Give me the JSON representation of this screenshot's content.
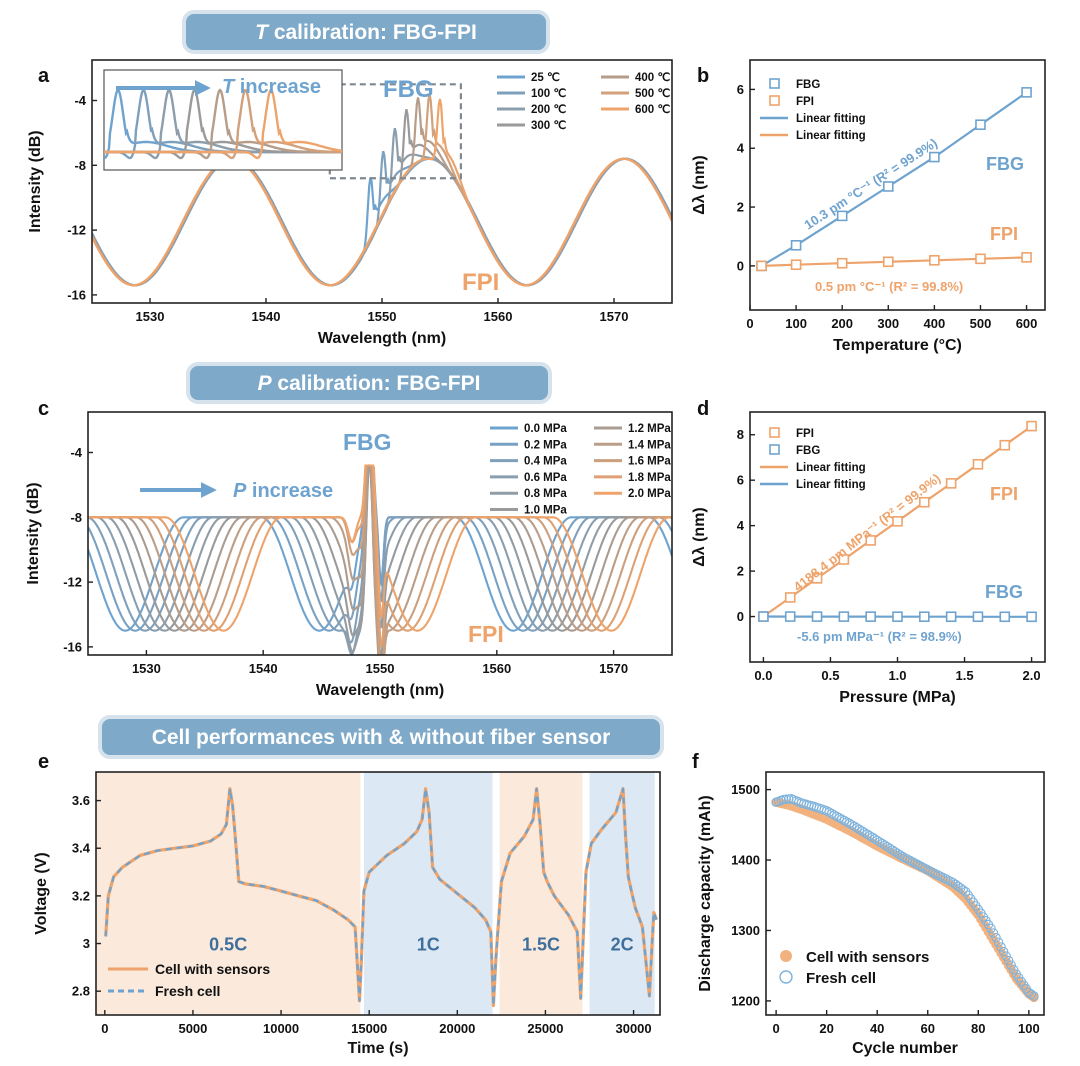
{
  "colors": {
    "blue": "#6fa3cf",
    "orange": "#eea36b",
    "banner": "#7ea9c9",
    "blueShade": "#dce9f4",
    "orangeShade": "#fbe9dc"
  },
  "banners": {
    "a": {
      "italic": "T",
      "rest": " calibration: FBG-FPI"
    },
    "c": {
      "italic": "P",
      "rest": " calibration: FBG-FPI"
    },
    "e": {
      "italic": "",
      "rest": "Cell performances with & without fiber sensor"
    }
  },
  "chart_data": [
    {
      "id": "a",
      "panel_label": "a",
      "type": "line",
      "xlabel": "Wavelength (nm)",
      "ylabel": "Intensity (dB)",
      "xlim": [
        1525,
        1575
      ],
      "ylim": [
        -16.5,
        -1.5
      ],
      "xticks": [
        1530,
        1540,
        1550,
        1560,
        1570
      ],
      "yticks": [
        -16,
        -12,
        -8,
        -4
      ],
      "legend": [
        "25 ℃",
        "100 ℃",
        "200 ℃",
        "300 ℃",
        "400 ℃",
        "500 ℃",
        "600 ℃"
      ],
      "series_params": {
        "fbg_center": [
          1549.0,
          1550.1,
          1551.1,
          1552.1,
          1553.1,
          1554.1,
          1555.0
        ],
        "fpi_period": 16.9,
        "fpi_min": [
          1528.7,
          1545.6,
          1562.5
        ]
      },
      "annotations": {
        "fbg": "FBG",
        "fpi": "FPI",
        "inset_italic": "T",
        "inset_rest": " increase"
      }
    },
    {
      "id": "b",
      "panel_label": "b",
      "type": "scatter",
      "xlabel": "Temperature (°C)",
      "ylabel": "Δλ (nm)",
      "xlim": [
        0,
        640
      ],
      "ylim": [
        -1.5,
        7
      ],
      "xticks": [
        0,
        100,
        200,
        300,
        400,
        500,
        600
      ],
      "yticks": [
        0,
        2,
        4,
        6
      ],
      "series": [
        {
          "name": "FBG",
          "fit_name": "Linear fitting",
          "x": [
            25,
            100,
            200,
            300,
            400,
            500,
            600
          ],
          "values": [
            0,
            0.7,
            1.7,
            2.7,
            3.7,
            4.8,
            5.9
          ]
        },
        {
          "name": "FPI",
          "fit_name": "Linear fitting",
          "x": [
            25,
            100,
            200,
            300,
            400,
            500,
            600
          ],
          "values": [
            0,
            0.04,
            0.09,
            0.14,
            0.19,
            0.24,
            0.29
          ]
        }
      ],
      "annotations": {
        "fbg_label": "FBG",
        "fpi_label": "FPI",
        "fbg_fit": "10.3 pm °C⁻¹ (R² = 99.9%)",
        "fpi_fit": "0.5 pm °C⁻¹ (R² = 99.8%)"
      }
    },
    {
      "id": "c",
      "panel_label": "c",
      "type": "line",
      "xlabel": "Wavelength (nm)",
      "ylabel": "Intensity (dB)",
      "xlim": [
        1525,
        1575
      ],
      "ylim": [
        -16.5,
        -1.5
      ],
      "xticks": [
        1530,
        1540,
        1550,
        1560,
        1570
      ],
      "yticks": [
        -16,
        -12,
        -8,
        -4
      ],
      "legend": [
        "0.0 MPa",
        "0.2 MPa",
        "0.4 MPa",
        "0.6 MPa",
        "0.8 MPa",
        "1.0 MPa",
        "1.2 MPa",
        "1.4 MPa",
        "1.6 MPa",
        "1.8 MPa",
        "2.0 MPa"
      ],
      "series_params": {
        "fpi_min_start": 1528.2,
        "fpi_shift_per_step": 0.84,
        "fpi_period": 16.6,
        "fbg_center": 1549.1
      },
      "annotations": {
        "fbg": "FBG",
        "fpi": "FPI",
        "arrow_italic": "P",
        "arrow_rest": " increase"
      }
    },
    {
      "id": "d",
      "panel_label": "d",
      "type": "scatter",
      "xlabel": "Pressure (MPa)",
      "ylabel": "Δλ (nm)",
      "xlim": [
        -0.1,
        2.1
      ],
      "ylim": [
        -2,
        9
      ],
      "xticks": [
        0.0,
        0.5,
        1.0,
        1.5,
        2.0
      ],
      "yticks": [
        0,
        2,
        4,
        6,
        8
      ],
      "series": [
        {
          "name": "FPI",
          "fit_name": "Linear fitting",
          "x": [
            0,
            0.2,
            0.4,
            0.6,
            0.8,
            1.0,
            1.2,
            1.4,
            1.6,
            1.8,
            2.0
          ],
          "values": [
            0,
            0.84,
            1.68,
            2.51,
            3.35,
            4.19,
            5.03,
            5.86,
            6.7,
            7.54,
            8.38
          ]
        },
        {
          "name": "FBG",
          "fit_name": "Linear fitting",
          "x": [
            0,
            0.2,
            0.4,
            0.6,
            0.8,
            1.0,
            1.2,
            1.4,
            1.6,
            1.8,
            2.0
          ],
          "values": [
            0,
            -0.001,
            -0.002,
            -0.003,
            -0.004,
            -0.006,
            -0.007,
            -0.008,
            -0.009,
            -0.01,
            -0.011
          ]
        }
      ],
      "annotations": {
        "fpi_label": "FPI",
        "fbg_label": "FBG",
        "fpi_fit": "4188.4 pm MPa⁻¹ (R² = 99.9%)",
        "fbg_fit": "-5.6 pm MPa⁻¹ (R² = 98.9%)"
      }
    },
    {
      "id": "e",
      "panel_label": "e",
      "type": "line",
      "xlabel": "Time (s)",
      "ylabel": "Voltage (V)",
      "xlim": [
        -500,
        31500
      ],
      "ylim": [
        2.7,
        3.72
      ],
      "xticks": [
        0,
        5000,
        10000,
        15000,
        20000,
        25000,
        30000
      ],
      "yticks": [
        2.8,
        3.0,
        3.2,
        3.4,
        3.6
      ],
      "regions": [
        {
          "label": "0.5C",
          "from": -500,
          "to": 14500,
          "shade": "orange"
        },
        {
          "label": "1C",
          "from": 14700,
          "to": 22000,
          "shade": "blue"
        },
        {
          "label": "1.5C",
          "from": 22400,
          "to": 27100,
          "shade": "orange"
        },
        {
          "label": "2C",
          "from": 27500,
          "to": 31200,
          "shade": "blue"
        }
      ],
      "series": [
        {
          "name": "Cell with sensors",
          "style": "solid"
        },
        {
          "name": "Fresh cell",
          "style": "dashed"
        }
      ],
      "curve": {
        "t": [
          50,
          200,
          500,
          1000,
          2000,
          3000,
          4000,
          5000,
          6000,
          6600,
          6900,
          7100,
          7250,
          7400,
          7600,
          8000,
          9000,
          10000,
          11000,
          12000,
          13000,
          13800,
          14200,
          14450,
          14550,
          14700,
          15000,
          16000,
          17000,
          17700,
          18000,
          18200,
          18400,
          18600,
          19000,
          20000,
          21000,
          21600,
          21900,
          22050,
          22200,
          22500,
          23000,
          23800,
          24300,
          24500,
          24700,
          24900,
          25100,
          25500,
          26300,
          26800,
          27000,
          27100,
          27300,
          27600,
          28200,
          29000,
          29400,
          29550,
          29700,
          29850,
          30100,
          30500,
          30900,
          31050,
          31150,
          31300
        ],
        "v": [
          3.03,
          3.2,
          3.28,
          3.32,
          3.37,
          3.39,
          3.4,
          3.41,
          3.43,
          3.46,
          3.5,
          3.65,
          3.58,
          3.45,
          3.26,
          3.25,
          3.24,
          3.22,
          3.2,
          3.18,
          3.14,
          3.1,
          3.07,
          2.76,
          2.92,
          3.22,
          3.3,
          3.37,
          3.42,
          3.47,
          3.52,
          3.65,
          3.55,
          3.32,
          3.27,
          3.21,
          3.15,
          3.1,
          3.05,
          2.74,
          2.95,
          3.26,
          3.38,
          3.45,
          3.52,
          3.65,
          3.5,
          3.3,
          3.26,
          3.2,
          3.12,
          3.05,
          2.77,
          2.95,
          3.3,
          3.42,
          3.48,
          3.55,
          3.65,
          3.45,
          3.28,
          3.23,
          3.15,
          3.07,
          2.78,
          3.0,
          3.13,
          3.1
        ]
      }
    },
    {
      "id": "f",
      "panel_label": "f",
      "type": "scatter",
      "xlabel": "Cycle number",
      "ylabel": "Discharge capacity (mAh)",
      "xlim": [
        -4,
        106
      ],
      "ylim": [
        1180,
        1525
      ],
      "xticks": [
        0,
        20,
        40,
        60,
        80,
        100
      ],
      "yticks": [
        1200,
        1300,
        1400,
        1500
      ],
      "series": [
        {
          "name": "Cell with sensors",
          "marker": "filled",
          "x": [
            0,
            5,
            10,
            15,
            20,
            30,
            40,
            50,
            60,
            70,
            75,
            80,
            85,
            90,
            95,
            100,
            102
          ],
          "values": [
            1482,
            1478,
            1472,
            1465,
            1458,
            1440,
            1420,
            1402,
            1385,
            1362,
            1345,
            1322,
            1292,
            1262,
            1232,
            1210,
            1205
          ]
        },
        {
          "name": "Fresh cell",
          "marker": "open",
          "x": [
            0,
            3,
            6,
            10,
            15,
            20,
            30,
            40,
            50,
            60,
            70,
            75,
            80,
            85,
            90,
            95,
            100,
            102
          ],
          "values": [
            1482,
            1486,
            1487,
            1481,
            1476,
            1470,
            1450,
            1428,
            1405,
            1386,
            1368,
            1355,
            1330,
            1303,
            1270,
            1238,
            1212,
            1207
          ]
        }
      ]
    }
  ]
}
